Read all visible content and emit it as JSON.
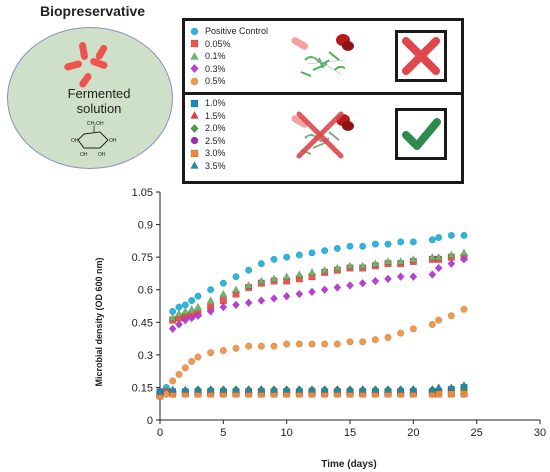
{
  "header": {
    "title": "Biopreservative"
  },
  "illustration": {
    "dish_label_line1": "Fermented",
    "dish_label_line2": "solution",
    "sugar_group": "CH₂OH",
    "hydroxyl": "OH"
  },
  "legend_top": [
    {
      "label": "Positive Control",
      "color": "#29b6e0",
      "marker": "circle"
    },
    {
      "label": "0.05%",
      "color": "#ef5350",
      "marker": "square"
    },
    {
      "label": "0.1%",
      "color": "#66bb6a",
      "marker": "triangle"
    },
    {
      "label": "0.3%",
      "color": "#ba3fd9",
      "marker": "diamond"
    },
    {
      "label": "0.5%",
      "color": "#f2994a",
      "marker": "circle"
    }
  ],
  "legend_bottom": [
    {
      "label": "1.0%",
      "color": "#1e88c5",
      "marker": "square"
    },
    {
      "label": "1.5%",
      "color": "#e53935",
      "marker": "triangle"
    },
    {
      "label": "2.0%",
      "color": "#43a047",
      "marker": "diamond"
    },
    {
      "label": "2.5%",
      "color": "#9c27b0",
      "marker": "circle"
    },
    {
      "label": "3.0%",
      "color": "#f0883a",
      "marker": "square"
    },
    {
      "label": "3.5%",
      "color": "#1e8ab0",
      "marker": "triangle"
    }
  ],
  "status": {
    "top_icon": "red-cross-icon",
    "bottom_icon": "green-check-icon"
  },
  "chart_data": {
    "type": "scatter",
    "xlabel": "Time (days)",
    "ylabel": "Microbial density (OD 600 nm)",
    "xlim": [
      0,
      30
    ],
    "ylim": [
      0,
      1.05
    ],
    "xticks": [
      0,
      5,
      10,
      15,
      20,
      25,
      30
    ],
    "yticks": [
      0,
      0.15,
      0.3,
      0.45,
      0.6,
      0.75,
      0.9,
      1.05
    ],
    "grid": false,
    "legend": "above plot",
    "series": [
      {
        "name": "Positive Control",
        "color": "#29b6e0",
        "marker": "circle",
        "points": [
          [
            0,
            0.12
          ],
          [
            0.5,
            0.15
          ],
          [
            1,
            0.5
          ],
          [
            1.5,
            0.52
          ],
          [
            2,
            0.53
          ],
          [
            2.5,
            0.55
          ],
          [
            3,
            0.57
          ],
          [
            4,
            0.6
          ],
          [
            5,
            0.63
          ],
          [
            6,
            0.66
          ],
          [
            7,
            0.69
          ],
          [
            8,
            0.72
          ],
          [
            9,
            0.74
          ],
          [
            10,
            0.75
          ],
          [
            11,
            0.76
          ],
          [
            12,
            0.77
          ],
          [
            13,
            0.78
          ],
          [
            14,
            0.79
          ],
          [
            15,
            0.8
          ],
          [
            16,
            0.8
          ],
          [
            17,
            0.81
          ],
          [
            18,
            0.81
          ],
          [
            19,
            0.82
          ],
          [
            20,
            0.82
          ],
          [
            21.5,
            0.83
          ],
          [
            22,
            0.84
          ],
          [
            23,
            0.85
          ],
          [
            24,
            0.85
          ]
        ]
      },
      {
        "name": "0.05%",
        "color": "#ef5350",
        "marker": "square",
        "points": [
          [
            0,
            0.12
          ],
          [
            0.5,
            0.13
          ],
          [
            1,
            0.46
          ],
          [
            1.5,
            0.47
          ],
          [
            2,
            0.48
          ],
          [
            2.5,
            0.48
          ],
          [
            3,
            0.49
          ],
          [
            4,
            0.52
          ],
          [
            5,
            0.55
          ],
          [
            6,
            0.58
          ],
          [
            7,
            0.61
          ],
          [
            8,
            0.63
          ],
          [
            9,
            0.64
          ],
          [
            10,
            0.64
          ],
          [
            11,
            0.65
          ],
          [
            12,
            0.66
          ],
          [
            13,
            0.68
          ],
          [
            14,
            0.69
          ],
          [
            15,
            0.7
          ],
          [
            16,
            0.7
          ],
          [
            17,
            0.71
          ],
          [
            18,
            0.72
          ],
          [
            19,
            0.72
          ],
          [
            20,
            0.73
          ],
          [
            21.5,
            0.74
          ],
          [
            22,
            0.74
          ],
          [
            23,
            0.75
          ],
          [
            24,
            0.75
          ]
        ]
      },
      {
        "name": "0.1%",
        "color": "#66bb6a",
        "marker": "triangle",
        "points": [
          [
            0,
            0.12
          ],
          [
            0.5,
            0.13
          ],
          [
            1,
            0.47
          ],
          [
            1.5,
            0.49
          ],
          [
            2,
            0.5
          ],
          [
            2.5,
            0.51
          ],
          [
            3,
            0.52
          ],
          [
            4,
            0.55
          ],
          [
            5,
            0.58
          ],
          [
            6,
            0.6
          ],
          [
            7,
            0.62
          ],
          [
            8,
            0.64
          ],
          [
            9,
            0.65
          ],
          [
            10,
            0.66
          ],
          [
            11,
            0.67
          ],
          [
            12,
            0.68
          ],
          [
            13,
            0.69
          ],
          [
            14,
            0.7
          ],
          [
            15,
            0.71
          ],
          [
            16,
            0.71
          ],
          [
            17,
            0.72
          ],
          [
            18,
            0.73
          ],
          [
            19,
            0.73
          ],
          [
            20,
            0.74
          ],
          [
            21.5,
            0.75
          ],
          [
            22,
            0.75
          ],
          [
            23,
            0.76
          ],
          [
            24,
            0.77
          ]
        ]
      },
      {
        "name": "0.3%",
        "color": "#ba3fd9",
        "marker": "diamond",
        "points": [
          [
            0,
            0.11
          ],
          [
            0.5,
            0.12
          ],
          [
            1,
            0.42
          ],
          [
            1.5,
            0.44
          ],
          [
            2,
            0.46
          ],
          [
            2.5,
            0.47
          ],
          [
            3,
            0.48
          ],
          [
            4,
            0.5
          ],
          [
            5,
            0.52
          ],
          [
            6,
            0.53
          ],
          [
            7,
            0.54
          ],
          [
            8,
            0.55
          ],
          [
            9,
            0.56
          ],
          [
            10,
            0.57
          ],
          [
            11,
            0.58
          ],
          [
            12,
            0.59
          ],
          [
            13,
            0.6
          ],
          [
            14,
            0.61
          ],
          [
            15,
            0.62
          ],
          [
            16,
            0.63
          ],
          [
            17,
            0.64
          ],
          [
            18,
            0.65
          ],
          [
            19,
            0.66
          ],
          [
            20,
            0.66
          ],
          [
            21.5,
            0.67
          ],
          [
            22,
            0.7
          ],
          [
            23,
            0.72
          ],
          [
            24,
            0.74
          ]
        ]
      },
      {
        "name": "0.5%",
        "color": "#f2994a",
        "marker": "circle",
        "points": [
          [
            0,
            0.11
          ],
          [
            0.5,
            0.12
          ],
          [
            1,
            0.18
          ],
          [
            1.5,
            0.21
          ],
          [
            2,
            0.24
          ],
          [
            2.5,
            0.27
          ],
          [
            3,
            0.29
          ],
          [
            4,
            0.31
          ],
          [
            5,
            0.32
          ],
          [
            6,
            0.33
          ],
          [
            7,
            0.34
          ],
          [
            8,
            0.34
          ],
          [
            9,
            0.34
          ],
          [
            10,
            0.35
          ],
          [
            11,
            0.35
          ],
          [
            12,
            0.35
          ],
          [
            13,
            0.35
          ],
          [
            14,
            0.35
          ],
          [
            15,
            0.36
          ],
          [
            16,
            0.36
          ],
          [
            17,
            0.37
          ],
          [
            18,
            0.38
          ],
          [
            19,
            0.4
          ],
          [
            20,
            0.42
          ],
          [
            21.5,
            0.44
          ],
          [
            22,
            0.46
          ],
          [
            23,
            0.48
          ],
          [
            24,
            0.51
          ]
        ]
      },
      {
        "name": "1.0%",
        "color": "#1e88c5",
        "marker": "square",
        "points": [
          [
            0,
            0.13
          ],
          [
            1,
            0.13
          ],
          [
            2,
            0.13
          ],
          [
            3,
            0.13
          ],
          [
            4,
            0.13
          ],
          [
            5,
            0.13
          ],
          [
            6,
            0.13
          ],
          [
            7,
            0.13
          ],
          [
            8,
            0.13
          ],
          [
            9,
            0.13
          ],
          [
            10,
            0.13
          ],
          [
            11,
            0.13
          ],
          [
            12,
            0.13
          ],
          [
            13,
            0.13
          ],
          [
            14,
            0.13
          ],
          [
            15,
            0.13
          ],
          [
            16,
            0.13
          ],
          [
            17,
            0.13
          ],
          [
            18,
            0.13
          ],
          [
            19,
            0.13
          ],
          [
            20,
            0.13
          ],
          [
            21.5,
            0.13
          ],
          [
            22,
            0.13
          ],
          [
            23,
            0.14
          ],
          [
            24,
            0.15
          ]
        ]
      },
      {
        "name": "1.5%",
        "color": "#e53935",
        "marker": "triangle",
        "points": [
          [
            0,
            0.12
          ],
          [
            1,
            0.13
          ],
          [
            2,
            0.13
          ],
          [
            3,
            0.13
          ],
          [
            4,
            0.13
          ],
          [
            5,
            0.13
          ],
          [
            6,
            0.13
          ],
          [
            7,
            0.13
          ],
          [
            8,
            0.13
          ],
          [
            9,
            0.13
          ],
          [
            10,
            0.13
          ],
          [
            11,
            0.13
          ],
          [
            12,
            0.13
          ],
          [
            13,
            0.13
          ],
          [
            14,
            0.13
          ],
          [
            15,
            0.13
          ],
          [
            16,
            0.13
          ],
          [
            17,
            0.13
          ],
          [
            18,
            0.13
          ],
          [
            19,
            0.13
          ],
          [
            20,
            0.13
          ],
          [
            21.5,
            0.13
          ],
          [
            22,
            0.13
          ],
          [
            23,
            0.13
          ],
          [
            24,
            0.13
          ]
        ]
      },
      {
        "name": "2.0%",
        "color": "#43a047",
        "marker": "diamond",
        "points": [
          [
            0,
            0.12
          ],
          [
            1,
            0.13
          ],
          [
            2,
            0.13
          ],
          [
            3,
            0.14
          ],
          [
            4,
            0.14
          ],
          [
            5,
            0.14
          ],
          [
            6,
            0.14
          ],
          [
            7,
            0.14
          ],
          [
            8,
            0.14
          ],
          [
            9,
            0.14
          ],
          [
            10,
            0.14
          ],
          [
            11,
            0.14
          ],
          [
            12,
            0.14
          ],
          [
            13,
            0.14
          ],
          [
            14,
            0.14
          ],
          [
            15,
            0.14
          ],
          [
            16,
            0.14
          ],
          [
            17,
            0.14
          ],
          [
            18,
            0.14
          ],
          [
            19,
            0.14
          ],
          [
            20,
            0.14
          ],
          [
            21.5,
            0.14
          ],
          [
            22,
            0.14
          ],
          [
            23,
            0.14
          ],
          [
            24,
            0.14
          ]
        ]
      },
      {
        "name": "2.5%",
        "color": "#9c27b0",
        "marker": "circle",
        "points": [
          [
            0,
            0.12
          ],
          [
            1,
            0.12
          ],
          [
            2,
            0.12
          ],
          [
            3,
            0.12
          ],
          [
            4,
            0.12
          ],
          [
            5,
            0.12
          ],
          [
            6,
            0.12
          ],
          [
            7,
            0.12
          ],
          [
            8,
            0.12
          ],
          [
            9,
            0.12
          ],
          [
            10,
            0.12
          ],
          [
            11,
            0.12
          ],
          [
            12,
            0.12
          ],
          [
            13,
            0.12
          ],
          [
            14,
            0.12
          ],
          [
            15,
            0.12
          ],
          [
            16,
            0.12
          ],
          [
            17,
            0.12
          ],
          [
            18,
            0.12
          ],
          [
            19,
            0.12
          ],
          [
            20,
            0.12
          ],
          [
            21.5,
            0.12
          ],
          [
            22,
            0.12
          ],
          [
            23,
            0.12
          ],
          [
            24,
            0.12
          ]
        ]
      },
      {
        "name": "3.0%",
        "color": "#f0883a",
        "marker": "square",
        "points": [
          [
            0,
            0.11
          ],
          [
            1,
            0.12
          ],
          [
            2,
            0.12
          ],
          [
            3,
            0.12
          ],
          [
            4,
            0.12
          ],
          [
            5,
            0.12
          ],
          [
            6,
            0.12
          ],
          [
            7,
            0.12
          ],
          [
            8,
            0.12
          ],
          [
            9,
            0.12
          ],
          [
            10,
            0.12
          ],
          [
            11,
            0.12
          ],
          [
            12,
            0.12
          ],
          [
            13,
            0.12
          ],
          [
            14,
            0.12
          ],
          [
            15,
            0.12
          ],
          [
            16,
            0.12
          ],
          [
            17,
            0.12
          ],
          [
            18,
            0.12
          ],
          [
            19,
            0.12
          ],
          [
            20,
            0.12
          ],
          [
            21.5,
            0.12
          ],
          [
            22,
            0.12
          ],
          [
            23,
            0.12
          ],
          [
            24,
            0.12
          ]
        ]
      },
      {
        "name": "3.5%",
        "color": "#1e8ab0",
        "marker": "triangle",
        "points": [
          [
            0,
            0.13
          ],
          [
            1,
            0.14
          ],
          [
            2,
            0.14
          ],
          [
            3,
            0.14
          ],
          [
            4,
            0.14
          ],
          [
            5,
            0.14
          ],
          [
            6,
            0.14
          ],
          [
            7,
            0.14
          ],
          [
            8,
            0.14
          ],
          [
            9,
            0.14
          ],
          [
            10,
            0.14
          ],
          [
            11,
            0.14
          ],
          [
            12,
            0.14
          ],
          [
            13,
            0.14
          ],
          [
            14,
            0.14
          ],
          [
            15,
            0.14
          ],
          [
            16,
            0.14
          ],
          [
            17,
            0.14
          ],
          [
            18,
            0.14
          ],
          [
            19,
            0.14
          ],
          [
            20,
            0.14
          ],
          [
            21.5,
            0.14
          ],
          [
            22,
            0.15
          ],
          [
            23,
            0.15
          ],
          [
            24,
            0.16
          ]
        ]
      }
    ]
  }
}
